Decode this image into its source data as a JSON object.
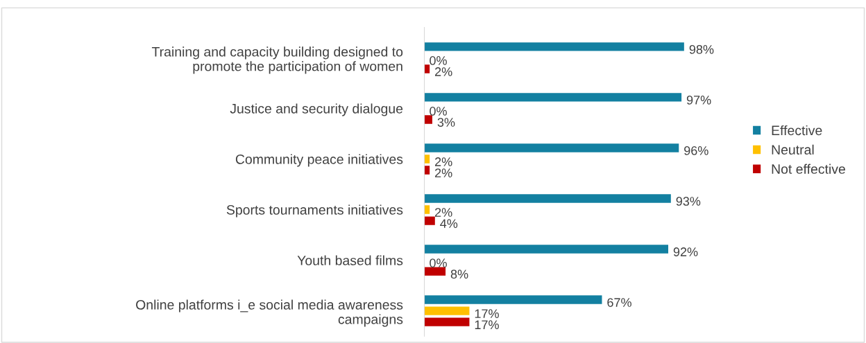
{
  "chart_data": {
    "type": "bar",
    "orientation": "horizontal",
    "categories": [
      "Training and capacity building designed to\npromote the participation of women",
      "Justice and security dialogue",
      "Community peace initiatives",
      "Sports tournaments initiatives",
      "Youth based films",
      "Online platforms i_e social media awareness\ncampaigns"
    ],
    "series": [
      {
        "name": "Effective",
        "color": "#1380a1",
        "values": [
          98,
          97,
          96,
          93,
          92,
          67
        ],
        "value_labels": [
          "98%",
          "97%",
          "96%",
          "93%",
          "92%",
          "67%"
        ]
      },
      {
        "name": "Neutral",
        "color": "#ffc000",
        "values": [
          0,
          0,
          2,
          2,
          0,
          17
        ],
        "value_labels": [
          "0%",
          "0%",
          "2%",
          "2%",
          "0%",
          "17%"
        ]
      },
      {
        "name": "Not effective",
        "color": "#c00000",
        "values": [
          2,
          3,
          2,
          4,
          8,
          17
        ],
        "value_labels": [
          "2%",
          "3%",
          "2%",
          "4%",
          "8%",
          "17%"
        ]
      }
    ],
    "legend": "right",
    "grid": false
  }
}
